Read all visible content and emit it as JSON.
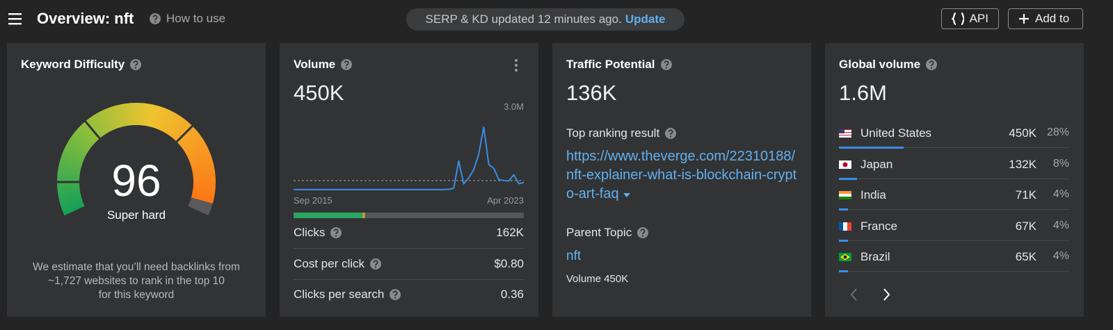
{
  "header": {
    "title": "Overview: nft",
    "help_link": "How to use",
    "status": "SERP & KD updated 12 minutes ago.",
    "update": "Update",
    "api_button": "API",
    "add_button": "Add to"
  },
  "keyword_difficulty": {
    "title": "Keyword Difficulty",
    "score": 96,
    "rating": "Super hard",
    "note": [
      "We estimate that you’ll need backlinks from",
      "~1,727 websites to rank in the top 10",
      "for this keyword"
    ]
  },
  "volume": {
    "title": "Volume",
    "value": "450K",
    "trend": {
      "ytop": {
        "value": 3000000,
        "label": "3.0M"
      },
      "start": "Sep 2015",
      "end": "Apr 2023",
      "color": "#3a8ee6",
      "reference": 375000,
      "values": [
        30000,
        30000,
        30000,
        30000,
        30000,
        30000,
        30000,
        30000,
        30000,
        30000,
        30000,
        30000,
        30000,
        30000,
        30000,
        30000,
        30000,
        30000,
        30000,
        30000,
        30000,
        30000,
        30000,
        30000,
        30000,
        30000,
        30000,
        30000,
        30000,
        30000,
        30000,
        40000,
        80000,
        1130000,
        250000,
        480000,
        800000,
        1400000,
        2440000,
        1000000,
        850000,
        420000,
        380000,
        360000,
        600000,
        260000,
        300000
      ]
    },
    "clicks_split": {
      "values": [
        30,
        1
      ],
      "colors": [
        "#2aa55f",
        "#d4a13b"
      ]
    },
    "rows": [
      {
        "label": "Clicks",
        "value": "162K"
      },
      {
        "label": "Cost per click",
        "value": "$0.80"
      },
      {
        "label": "Clicks per search",
        "value": "0.36"
      }
    ]
  },
  "traffic_potential": {
    "title": "Traffic Potential",
    "value": "136K",
    "top_result_label": "Top ranking result",
    "top_result_url": "https://www.theverge.com/22310188/nft-explainer-what-is-blockchain-crypto-art-faq",
    "parent_topic_label": "Parent Topic",
    "parent_topic": "nft",
    "parent_topic_volume": "Volume 450K"
  },
  "global_volume": {
    "title": "Global volume",
    "value": "1.6M",
    "rows": [
      {
        "flag": "us",
        "country": "United States",
        "volume": "450K",
        "share": 28,
        "share_label": "28%"
      },
      {
        "flag": "jp",
        "country": "Japan",
        "volume": "132K",
        "share": 8,
        "share_label": "8%"
      },
      {
        "flag": "in",
        "country": "India",
        "volume": "71K",
        "share": 4,
        "share_label": "4%"
      },
      {
        "flag": "fr",
        "country": "France",
        "volume": "67K",
        "share": 4,
        "share_label": "4%"
      },
      {
        "flag": "br",
        "country": "Brazil",
        "volume": "65K",
        "share": 4,
        "share_label": "4%"
      }
    ]
  }
}
